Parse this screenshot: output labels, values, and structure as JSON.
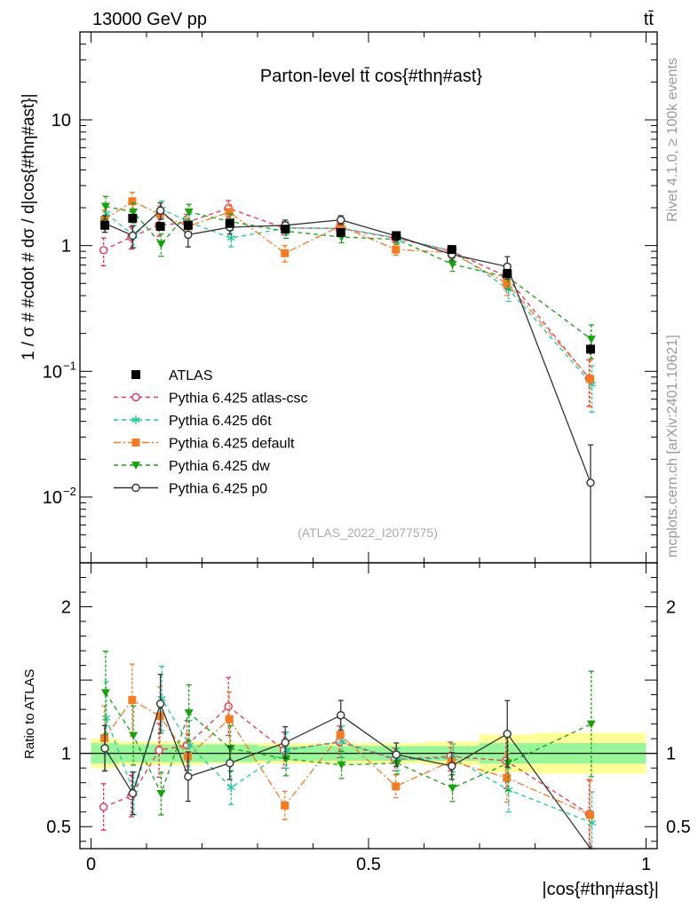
{
  "header": {
    "energy": "13000 GeV pp",
    "process": "tt̄"
  },
  "side_text": {
    "rivet": "Rivet 4.1.0, ≥ 100k events",
    "source": "mcplots.cern.ch [arXiv:2401.10621]"
  },
  "chart_data": {
    "type": "scatter",
    "title": "Parton-level tt̄ cos{#thη#ast}",
    "analysis_tag": "(ATLAS_2022_I2077575)",
    "xlabel": "|cos{#thη#ast}|",
    "ylabel": "1 / σ # #cdot # dσ / d|cos{#thη#ast}|",
    "ratio_ylabel": "Ratio to ATLAS",
    "xlim": [
      -0.02,
      1.02
    ],
    "ylim": [
      0.003,
      50
    ],
    "ratio_ylim": [
      0.35,
      2.3
    ],
    "x_ticks": [
      "0",
      "0.5",
      "1"
    ],
    "y_ticks": [
      "10",
      "1",
      "10^-1",
      "10^-2"
    ],
    "ratio_ticks": [
      "2",
      "1",
      "0.5"
    ],
    "x": [
      0.025,
      0.075,
      0.125,
      0.175,
      0.25,
      0.35,
      0.45,
      0.55,
      0.65,
      0.75,
      0.9
    ],
    "x_edges": [
      0,
      0.05,
      0.1,
      0.15,
      0.2,
      0.3,
      0.4,
      0.5,
      0.6,
      0.7,
      0.8,
      1.0
    ],
    "data": {
      "name": "ATLAS",
      "values": [
        1.45,
        1.65,
        1.42,
        1.45,
        1.5,
        1.35,
        1.27,
        1.2,
        0.93,
        0.6,
        0.15
      ],
      "errors": [
        0.1,
        0.1,
        0.08,
        0.08,
        0.08,
        0.07,
        0.07,
        0.06,
        0.06,
        0.05,
        0.015
      ],
      "band_inner": [
        0.07,
        0.06,
        0.06,
        0.06,
        0.06,
        0.05,
        0.05,
        0.05,
        0.05,
        0.07,
        0.07
      ],
      "band_outer": [
        0.1,
        0.08,
        0.08,
        0.08,
        0.07,
        0.07,
        0.07,
        0.07,
        0.08,
        0.13,
        0.14
      ]
    },
    "series": [
      {
        "name": "Pythia 6.425 atlas-csc",
        "color": "#e8325a",
        "marker": "open-circle",
        "dash": "5,4",
        "values": [
          0.92,
          1.17,
          1.45,
          1.53,
          1.98,
          1.38,
          1.37,
          1.15,
          0.91,
          0.57,
          0.088
        ],
        "rel_err": [
          0.25,
          0.2,
          0.18,
          0.16,
          0.15,
          0.12,
          0.1,
          0.08,
          0.1,
          0.2,
          0.4
        ]
      },
      {
        "name": "Pythia 6.425 d6t",
        "color": "#1ec9a0",
        "marker": "asterisk",
        "dash": "5,4",
        "values": [
          1.8,
          1.2,
          1.95,
          1.53,
          1.15,
          1.38,
          1.37,
          1.15,
          0.9,
          0.45,
          0.079
        ],
        "rel_err": [
          0.2,
          0.2,
          0.16,
          0.16,
          0.15,
          0.12,
          0.1,
          0.08,
          0.1,
          0.2,
          0.4
        ]
      },
      {
        "name": "Pythia 6.425 default",
        "color": "#f57b22",
        "marker": "square",
        "dash": "8,3,2,3",
        "values": [
          1.6,
          2.25,
          1.78,
          1.42,
          1.85,
          0.87,
          1.43,
          0.93,
          0.88,
          0.5,
          0.087
        ],
        "rel_err": [
          0.2,
          0.18,
          0.16,
          0.16,
          0.15,
          0.15,
          0.1,
          0.1,
          0.1,
          0.2,
          0.4
        ]
      },
      {
        "name": "Pythia 6.425 dw",
        "color": "#17a30d",
        "marker": "down-triangle",
        "dash": "5,4",
        "values": [
          2.05,
          1.85,
          1.03,
          1.85,
          1.55,
          1.3,
          1.17,
          1.12,
          0.71,
          0.56,
          0.18
        ],
        "rel_err": [
          0.2,
          0.18,
          0.2,
          0.15,
          0.15,
          0.12,
          0.1,
          0.08,
          0.12,
          0.2,
          0.3
        ]
      },
      {
        "name": "Pythia 6.425 p0",
        "color": "#333333",
        "marker": "open-circle",
        "dash": "",
        "values": [
          1.5,
          1.2,
          1.9,
          1.22,
          1.4,
          1.45,
          1.6,
          1.19,
          0.85,
          0.68,
          0.013
        ],
        "rel_err": [
          0.15,
          0.2,
          0.15,
          0.2,
          0.12,
          0.1,
          0.08,
          0.08,
          0.1,
          0.2,
          1.0
        ]
      }
    ]
  }
}
